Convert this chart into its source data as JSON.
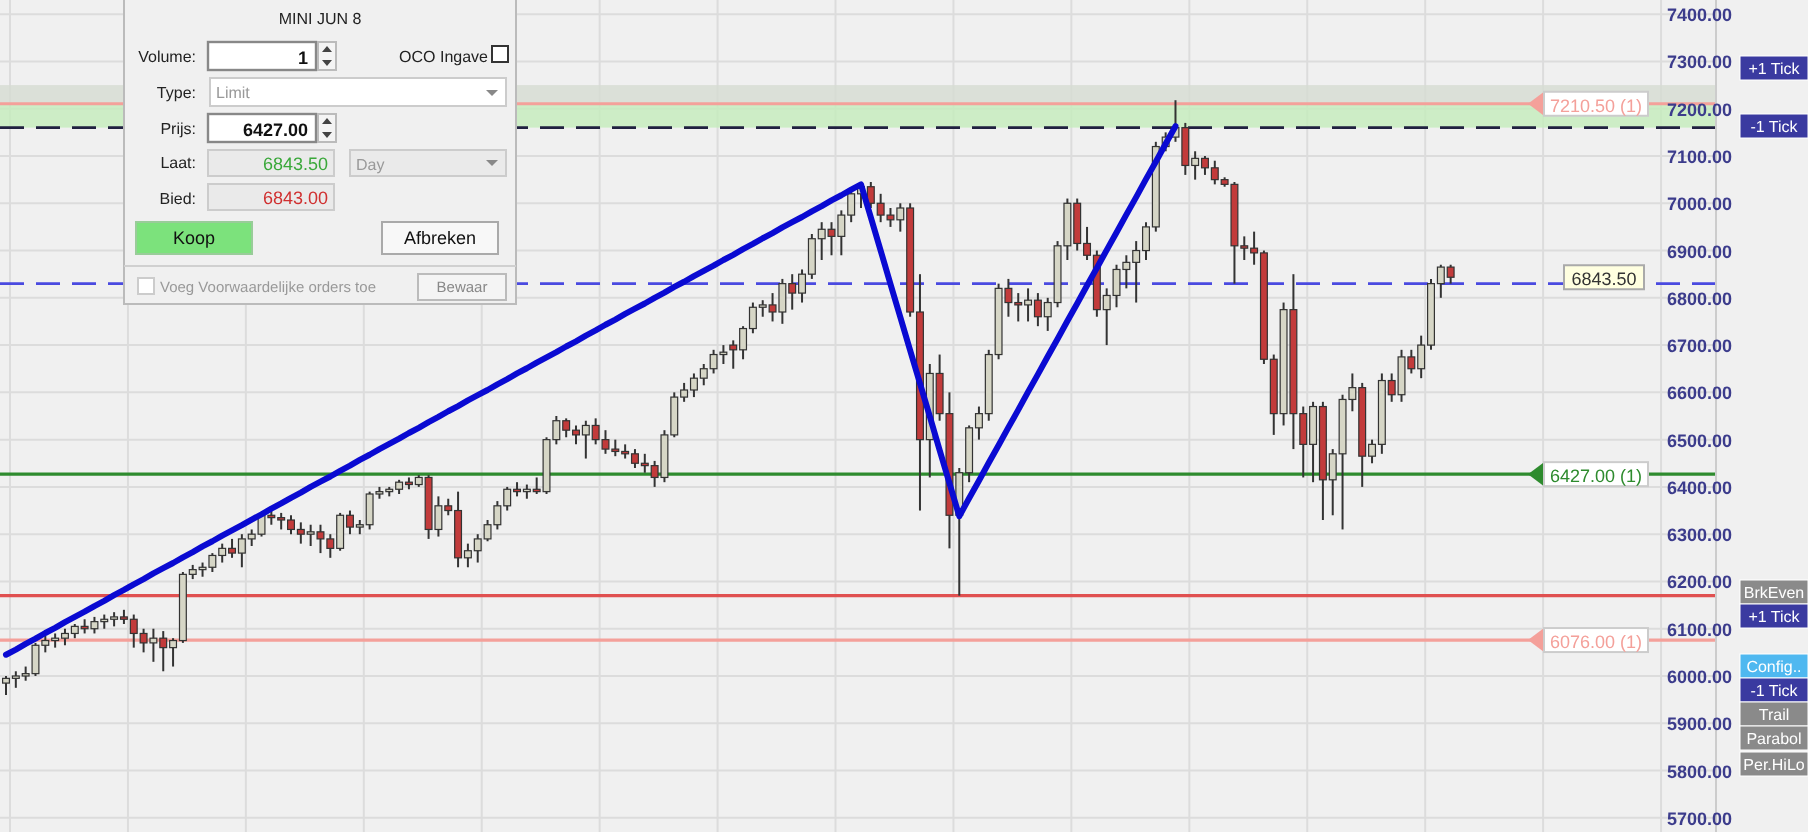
{
  "chart_data": [
    {
      "type": "candlestick",
      "categories": [
        null,
        null,
        null,
        null,
        null,
        null,
        null,
        null,
        null,
        null,
        null,
        null,
        null,
        null,
        null,
        null,
        null,
        null,
        null,
        null,
        null,
        null,
        null,
        null,
        null,
        null,
        null,
        null,
        null,
        null,
        null,
        null,
        null,
        null,
        null,
        null,
        null,
        null,
        null,
        null,
        null,
        null,
        null,
        null,
        null,
        null,
        null,
        null,
        null,
        null,
        null,
        null,
        null,
        null,
        null,
        null,
        null,
        null,
        null,
        null,
        null,
        null,
        null,
        null,
        null,
        null,
        null,
        null,
        null,
        null,
        null,
        null,
        null,
        null,
        null,
        null,
        null,
        null,
        null,
        null,
        null,
        null,
        null,
        null,
        null,
        null,
        null,
        null,
        null,
        null,
        null,
        null,
        null,
        null,
        null,
        null,
        null,
        null,
        null,
        null,
        null,
        null,
        null,
        null,
        null,
        null,
        null,
        null,
        null,
        null,
        null,
        null,
        null,
        null,
        null,
        null,
        null,
        null,
        null,
        null,
        null,
        null,
        null,
        null,
        null,
        null,
        null,
        null,
        null,
        null,
        null,
        null,
        null,
        null,
        null,
        null,
        null,
        null,
        null,
        null,
        null,
        null,
        null,
        null,
        null,
        null,
        null,
        null
      ],
      "ohlc": [
        [
          5985,
          6000,
          5960,
          5995
        ],
        [
          5995,
          6010,
          5975,
          6000
        ],
        [
          6000,
          6020,
          5990,
          6005
        ],
        [
          6005,
          6070,
          6000,
          6065
        ],
        [
          6065,
          6085,
          6050,
          6075
        ],
        [
          6075,
          6090,
          6060,
          6080
        ],
        [
          6080,
          6100,
          6065,
          6090
        ],
        [
          6090,
          6110,
          6080,
          6105
        ],
        [
          6105,
          6120,
          6090,
          6100
        ],
        [
          6100,
          6125,
          6090,
          6115
        ],
        [
          6115,
          6130,
          6100,
          6120
        ],
        [
          6120,
          6135,
          6105,
          6125
        ],
        [
          6125,
          6140,
          6110,
          6120
        ],
        [
          6120,
          6130,
          6060,
          6090
        ],
        [
          6090,
          6100,
          6050,
          6070
        ],
        [
          6070,
          6100,
          6030,
          6080
        ],
        [
          6080,
          6095,
          6010,
          6060
        ],
        [
          6060,
          6080,
          6020,
          6075
        ],
        [
          6075,
          6220,
          6070,
          6215
        ],
        [
          6215,
          6235,
          6205,
          6225
        ],
        [
          6225,
          6240,
          6210,
          6230
        ],
        [
          6230,
          6260,
          6220,
          6255
        ],
        [
          6255,
          6280,
          6240,
          6270
        ],
        [
          6270,
          6290,
          6250,
          6260
        ],
        [
          6260,
          6300,
          6230,
          6290
        ],
        [
          6290,
          6310,
          6275,
          6300
        ],
        [
          6300,
          6345,
          6295,
          6340
        ],
        [
          6340,
          6355,
          6320,
          6335
        ],
        [
          6335,
          6345,
          6310,
          6330
        ],
        [
          6330,
          6340,
          6300,
          6310
        ],
        [
          6310,
          6325,
          6280,
          6300
        ],
        [
          6300,
          6320,
          6275,
          6305
        ],
        [
          6305,
          6320,
          6260,
          6290
        ],
        [
          6290,
          6300,
          6250,
          6270
        ],
        [
          6270,
          6345,
          6265,
          6340
        ],
        [
          6340,
          6350,
          6300,
          6315
        ],
        [
          6315,
          6330,
          6300,
          6320
        ],
        [
          6320,
          6390,
          6310,
          6385
        ],
        [
          6385,
          6400,
          6375,
          6390
        ],
        [
          6390,
          6400,
          6380,
          6395
        ],
        [
          6395,
          6415,
          6385,
          6410
        ],
        [
          6410,
          6420,
          6395,
          6405
        ],
        [
          6405,
          6425,
          6400,
          6420
        ],
        [
          6420,
          6425,
          6290,
          6310
        ],
        [
          6310,
          6380,
          6295,
          6360
        ],
        [
          6360,
          6375,
          6340,
          6350
        ],
        [
          6350,
          6390,
          6230,
          6250
        ],
        [
          6250,
          6280,
          6230,
          6265
        ],
        [
          6265,
          6300,
          6240,
          6290
        ],
        [
          6290,
          6330,
          6285,
          6320
        ],
        [
          6320,
          6370,
          6310,
          6360
        ],
        [
          6360,
          6400,
          6350,
          6395
        ],
        [
          6395,
          6410,
          6380,
          6390
        ],
        [
          6390,
          6405,
          6375,
          6395
        ],
        [
          6395,
          6420,
          6385,
          6390
        ],
        [
          6390,
          6505,
          6385,
          6500
        ],
        [
          6500,
          6550,
          6490,
          6540
        ],
        [
          6540,
          6545,
          6505,
          6520
        ],
        [
          6520,
          6530,
          6490,
          6510
        ],
        [
          6510,
          6540,
          6460,
          6530
        ],
        [
          6530,
          6545,
          6490,
          6500
        ],
        [
          6500,
          6520,
          6470,
          6480
        ],
        [
          6480,
          6500,
          6465,
          6475
        ],
        [
          6475,
          6490,
          6460,
          6470
        ],
        [
          6470,
          6480,
          6440,
          6450
        ],
        [
          6450,
          6470,
          6430,
          6445
        ],
        [
          6445,
          6455,
          6400,
          6420
        ],
        [
          6420,
          6520,
          6410,
          6510
        ],
        [
          6510,
          6600,
          6505,
          6590
        ],
        [
          6590,
          6620,
          6580,
          6605
        ],
        [
          6605,
          6640,
          6590,
          6630
        ],
        [
          6630,
          6660,
          6615,
          6650
        ],
        [
          6650,
          6690,
          6640,
          6680
        ],
        [
          6680,
          6700,
          6660,
          6685
        ],
        [
          6700,
          6710,
          6650,
          6690
        ],
        [
          6690,
          6740,
          6670,
          6735
        ],
        [
          6735,
          6790,
          6725,
          6780
        ],
        [
          6780,
          6795,
          6760,
          6785
        ],
        [
          6785,
          6810,
          6750,
          6770
        ],
        [
          6770,
          6840,
          6745,
          6830
        ],
        [
          6830,
          6850,
          6775,
          6810
        ],
        [
          6810,
          6860,
          6790,
          6850
        ],
        [
          6850,
          6935,
          6840,
          6925
        ],
        [
          6925,
          6960,
          6880,
          6945
        ],
        [
          6945,
          6960,
          6890,
          6930
        ],
        [
          6930,
          6985,
          6890,
          6975
        ],
        [
          6975,
          7030,
          6960,
          7020
        ],
        [
          7020,
          7040,
          6990,
          7035
        ],
        [
          7035,
          7045,
          6990,
          7000
        ],
        [
          7000,
          7020,
          6960,
          6975
        ],
        [
          6975,
          6990,
          6950,
          6965
        ],
        [
          6965,
          7000,
          6940,
          6990
        ],
        [
          6990,
          7000,
          6760,
          6770
        ],
        [
          6770,
          6850,
          6350,
          6500
        ],
        [
          6500,
          6660,
          6420,
          6640
        ],
        [
          6640,
          6680,
          6540,
          6555
        ],
        [
          6555,
          6600,
          6270,
          6340
        ],
        [
          6340,
          6440,
          6170,
          6430
        ],
        [
          6430,
          6530,
          6410,
          6525
        ],
        [
          6525,
          6570,
          6500,
          6555
        ],
        [
          6555,
          6690,
          6540,
          6680
        ],
        [
          6680,
          6830,
          6670,
          6820
        ],
        [
          6820,
          6840,
          6760,
          6790
        ],
        [
          6790,
          6810,
          6750,
          6785
        ],
        [
          6785,
          6820,
          6750,
          6795
        ],
        [
          6795,
          6810,
          6740,
          6760
        ],
        [
          6760,
          6800,
          6730,
          6790
        ],
        [
          6790,
          6920,
          6780,
          6910
        ],
        [
          6910,
          7010,
          6880,
          7000
        ],
        [
          7000,
          7010,
          6900,
          6915
        ],
        [
          6915,
          6950,
          6880,
          6890
        ],
        [
          6890,
          6900,
          6760,
          6775
        ],
        [
          6775,
          6820,
          6700,
          6805
        ],
        [
          6805,
          6870,
          6780,
          6860
        ],
        [
          6860,
          6890,
          6820,
          6875
        ],
        [
          6875,
          6920,
          6790,
          6900
        ],
        [
          6900,
          6960,
          6880,
          6950
        ],
        [
          6950,
          7130,
          6940,
          7120
        ],
        [
          7120,
          7150,
          7110,
          7140
        ],
        [
          7140,
          7218,
          7130,
          7160
        ],
        [
          7160,
          7170,
          7060,
          7080
        ],
        [
          7080,
          7110,
          7050,
          7095
        ],
        [
          7095,
          7100,
          7060,
          7075
        ],
        [
          7075,
          7090,
          7040,
          7050
        ],
        [
          7050,
          7055,
          7035,
          7040
        ],
        [
          7040,
          7045,
          6830,
          6910
        ],
        [
          6910,
          6930,
          6880,
          6905
        ],
        [
          6905,
          6940,
          6870,
          6895
        ],
        [
          6895,
          6900,
          6660,
          6670
        ],
        [
          6670,
          6680,
          6510,
          6555
        ],
        [
          6555,
          6790,
          6530,
          6775
        ],
        [
          6775,
          6850,
          6480,
          6555
        ],
        [
          6555,
          6570,
          6420,
          6490
        ],
        [
          6490,
          6580,
          6410,
          6570
        ],
        [
          6570,
          6580,
          6330,
          6415
        ],
        [
          6415,
          6480,
          6340,
          6470
        ],
        [
          6470,
          6595,
          6310,
          6585
        ],
        [
          6585,
          6640,
          6560,
          6610
        ],
        [
          6610,
          6620,
          6400,
          6465
        ],
        [
          6465,
          6500,
          6450,
          6490
        ],
        [
          6490,
          6640,
          6470,
          6625
        ],
        [
          6625,
          6640,
          6580,
          6595
        ],
        [
          6595,
          6690,
          6580,
          6675
        ],
        [
          6675,
          6690,
          6640,
          6650
        ],
        [
          6650,
          6720,
          6630,
          6700
        ],
        [
          6700,
          6840,
          6690,
          6830
        ],
        [
          6830,
          6870,
          6800,
          6865
        ],
        [
          6865,
          6870,
          6830,
          6843.5
        ]
      ],
      "series": [
        {
          "type": "line",
          "color": "#0a0ad2",
          "values": [
            6045,
            6056,
            6068,
            6079,
            6091,
            6102,
            6114,
            6125,
            6136,
            6148,
            6159,
            6171,
            6182,
            6194,
            6205,
            6217,
            6228,
            6239,
            6251,
            6262,
            6274,
            6285,
            6297,
            6308,
            6319,
            6331,
            6342,
            6354,
            6365,
            6377,
            6388,
            6400,
            6411,
            6422,
            6434,
            6445,
            6457,
            6468,
            6480,
            6491,
            6502,
            6514,
            6525,
            6537,
            6548,
            6560,
            6571,
            6583,
            6594,
            6605,
            6617,
            6628,
            6640,
            6651,
            6663,
            6674,
            6685,
            6697,
            6708,
            6720,
            6731,
            6743,
            6754,
            6766,
            6777,
            6788,
            6800,
            6811,
            6823,
            6834,
            6846,
            6857,
            6868,
            6880,
            6891,
            6903,
            6914,
            6926,
            6937,
            6949,
            6960,
            6971,
            6983,
            6994,
            7006,
            7017,
            7029,
            7040,
            6970,
            6900,
            6829,
            6759,
            6689,
            6619,
            6549,
            6478,
            6408,
            6338,
            6376,
            6413,
            6451,
            6488,
            6526,
            6563,
            6601,
            6638,
            6676,
            6713,
            6751,
            6788,
            6826,
            6863,
            6901,
            6938,
            6976,
            7013,
            7051,
            7088,
            7126,
            7163,
            null,
            null,
            null,
            null,
            null,
            null,
            null,
            null,
            null,
            null,
            null,
            null,
            null,
            null,
            null,
            null,
            null,
            null,
            null,
            null,
            null,
            null,
            null,
            null,
            null,
            null,
            null,
            null
          ]
        }
      ],
      "ylim": [
        5670,
        7430
      ],
      "yticks": [
        {
          "value": 5700,
          "label": "5700.00"
        },
        {
          "value": 5800,
          "label": "5800.00"
        },
        {
          "value": 5900,
          "label": "5900.00"
        },
        {
          "value": 6000,
          "label": "6000.00"
        },
        {
          "value": 6100,
          "label": "6100.00"
        },
        {
          "value": 6200,
          "label": "6200.00"
        },
        {
          "value": 6300,
          "label": "6300.00"
        },
        {
          "value": 6400,
          "label": "6400.00"
        },
        {
          "value": 6500,
          "label": "6500.00"
        },
        {
          "value": 6600,
          "label": "6600.00"
        },
        {
          "value": 6700,
          "label": "6700.00"
        },
        {
          "value": 6800,
          "label": "6800.00"
        },
        {
          "value": 6900,
          "label": "6900.00"
        },
        {
          "value": 7000,
          "label": "7000.00"
        },
        {
          "value": 7100,
          "label": "7100.00"
        },
        {
          "value": 7200,
          "label": "7200.00"
        },
        {
          "value": 7300,
          "label": "7300.00"
        },
        {
          "value": 7400,
          "label": "7400.00"
        }
      ],
      "ref_lines": [
        {
          "axis": "y",
          "value": 7210.5,
          "label": "7210.50 (1)",
          "color": "#f4a09a"
        },
        {
          "axis": "y",
          "value": 6427,
          "label": "6427.00 (1)",
          "color": "#2e8b2e"
        },
        {
          "axis": "y",
          "value": 6076,
          "label": "6076.00 (1)",
          "color": "#f4a09a"
        },
        {
          "axis": "y",
          "value": 6170,
          "color": "#e05050"
        },
        {
          "axis": "y",
          "value": 6830,
          "color": "#4a4ae0",
          "line_style": "dashed"
        },
        {
          "axis": "y",
          "value": 7160,
          "color": "#202040",
          "line_style": "dashed"
        }
      ],
      "bands": [
        {
          "axis": "y",
          "from": 7160,
          "to": 7210.5,
          "color": "#c4ecbc"
        },
        {
          "axis": "y",
          "from": 7210.5,
          "to": 7250,
          "color": "#d6dcd2"
        }
      ],
      "annotations": [
        {
          "text": "6843.50",
          "y": 6843.5
        },
        "+1 Tick",
        "-1 Tick",
        "BrkEven",
        "+1 Tick",
        "Config..",
        "-1 Tick",
        "Trail",
        "Parabol",
        "Per.HiLo"
      ],
      "grid": true,
      "tick_labels": "y"
    },
    {
      "type": "other",
      "title": "MINI JUN 8",
      "annotations": [
        "Volume:",
        "1",
        "OCO Ingave",
        "Type:",
        "Limit",
        "Prijs:",
        "6427.00",
        "Laat:",
        "6843.50",
        "Day",
        "Bied:",
        "6843.00",
        "Koop",
        "Afbreken",
        "Voeg Voorwaardelijke orders toe",
        "Bewaar"
      ]
    }
  ]
}
